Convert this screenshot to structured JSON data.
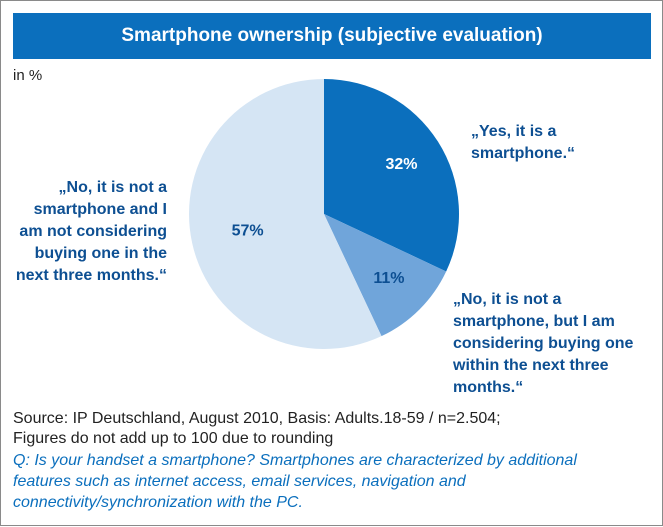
{
  "chart_data": {
    "type": "pie",
    "title": "Smartphone ownership (subjective evaluation)",
    "subtitle": "in %",
    "categories": [
      "„Yes, it is a smartphone.“",
      "„No, it is not a smartphone, but I am considering buying one within the next three months.“",
      "„No, it is not a smartphone and I am not considering buying one in the next three months.“"
    ],
    "values": [
      32,
      11,
      57
    ],
    "value_labels": [
      "32%",
      "11%",
      "57%"
    ],
    "colors": [
      "#0b6fbd",
      "#70a5da",
      "#d5e5f4"
    ],
    "source": [
      "Source: IP Deutschland, August 2010, Basis: Adults.18-59 / n=2.504;",
      "Figures do not add up to 100 due to rounding"
    ],
    "note": "Q: Is your handset a smartphone? Smartphones are characterized by additional features such as internet access, email services, navigation and connectivity/synchronization with the PC."
  }
}
